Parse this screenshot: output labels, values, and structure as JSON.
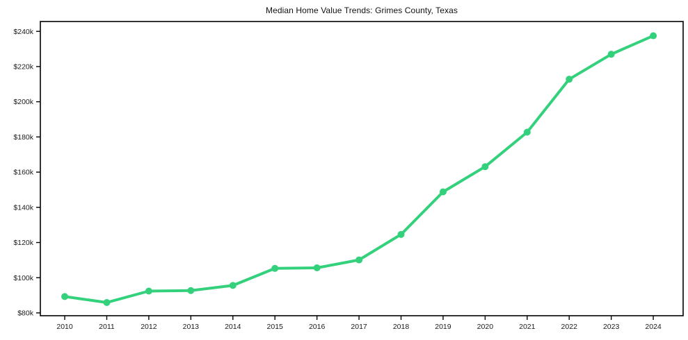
{
  "chart_data": {
    "type": "line",
    "title": "Median Home Value Trends: Grimes County, Texas",
    "categories": [
      "2010",
      "2011",
      "2012",
      "2013",
      "2014",
      "2015",
      "2016",
      "2017",
      "2018",
      "2019",
      "2020",
      "2021",
      "2022",
      "2023",
      "2024"
    ],
    "series": [
      {
        "name": "Median Home Value",
        "values": [
          89300,
          85900,
          92400,
          92700,
          95600,
          105300,
          105600,
          110100,
          124600,
          148800,
          163100,
          182700,
          212800,
          227000,
          237500
        ]
      }
    ],
    "xlabel": "",
    "ylabel": "",
    "y_ticks": {
      "values": [
        80000,
        100000,
        120000,
        140000,
        160000,
        180000,
        200000,
        220000,
        240000
      ],
      "labels": [
        "$80k",
        "$100k",
        "$120k",
        "$140k",
        "$160k",
        "$180k",
        "$200k",
        "$220k",
        "$240k"
      ]
    },
    "ylim": [
      78400,
      245600
    ],
    "xlim_index": [
      -0.58,
      14.71
    ],
    "grid": false,
    "legend": "none",
    "line_color": "#34d17c",
    "spine_color": "#000000",
    "tick_label_color": "#1a1a1a",
    "background": "#ffffff",
    "marker": "circle",
    "marker_diameter": 10,
    "line_width": 4
  }
}
